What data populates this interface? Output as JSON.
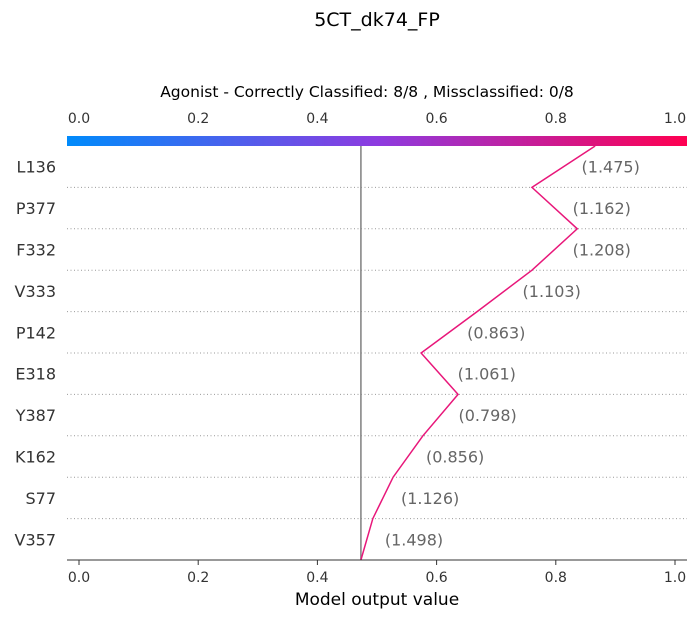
{
  "figure_title": "5CT_dk74_FP",
  "chart_data": {
    "type": "decision_plot",
    "title": "Agonist - Correctly Classified: 8/8 , Missclassified: 0/8",
    "xlabel": "Model output value",
    "xlim": [
      0,
      1
    ],
    "x_ticks": [
      "0.0",
      "0.2",
      "0.4",
      "0.6",
      "0.8",
      "1.0"
    ],
    "colorbar_ticks": [
      "0.0",
      "0.2",
      "0.4",
      "0.6",
      "0.8",
      "1.0"
    ],
    "colorbar_colors": [
      "#008bfb",
      "#8d3be0",
      "#ff0051"
    ],
    "base_value": 0.473,
    "line_color": "#e8177a",
    "features": [
      {
        "label": "L136",
        "annotation": "(1.475)"
      },
      {
        "label": "P377",
        "annotation": "(1.162)"
      },
      {
        "label": "F332",
        "annotation": "(1.208)"
      },
      {
        "label": "V333",
        "annotation": "(1.103)"
      },
      {
        "label": "P142",
        "annotation": "(0.863)"
      },
      {
        "label": "E318",
        "annotation": "(1.061)"
      },
      {
        "label": "Y387",
        "annotation": "(0.798)"
      },
      {
        "label": "K162",
        "annotation": "(0.856)"
      },
      {
        "label": "S77",
        "annotation": "(1.126)"
      },
      {
        "label": "V357",
        "annotation": "(1.498)"
      }
    ],
    "path_values": [
      0.866,
      0.76,
      0.836,
      0.76,
      0.668,
      0.574,
      0.636,
      0.577,
      0.527,
      0.493,
      0.473
    ]
  }
}
